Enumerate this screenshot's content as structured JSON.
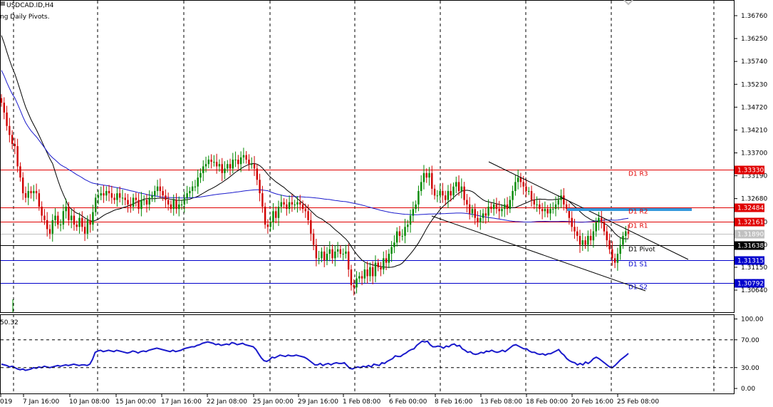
{
  "header": {
    "symbol": "USDCAD.ID,H4",
    "indicator": "ng Daily Pivots."
  },
  "chart_data": {
    "type": "candlestick",
    "symbol": "USDCAD.ID",
    "timeframe": "H4",
    "y_axis_labels": [
      "1.36760",
      "1.36250",
      "1.35740",
      "1.35230",
      "1.34720",
      "1.34210",
      "1.33700",
      "1.33190",
      "1.32680",
      "1.32160",
      "1.31650",
      "1.31150",
      "1.30640"
    ],
    "y_axis_values": [
      1.3676,
      1.3625,
      1.3574,
      1.3523,
      1.3472,
      1.3421,
      1.337,
      1.3319,
      1.3268,
      1.3216,
      1.3165,
      1.3115,
      1.3064
    ],
    "x_axis_labels": [
      "019",
      "7 Jan 16:00",
      "10 Jan 08:00",
      "15 Jan 00:00",
      "17 Jan 16:00",
      "22 Jan 08:00",
      "25 Jan 00:00",
      "29 Jan 16:00",
      "1 Feb 08:00",
      "6 Feb 00:00",
      "8 Feb 16:00",
      "13 Feb 08:00",
      "18 Feb 00:00",
      "20 Feb 16:00",
      "25 Feb 08:00"
    ],
    "pivot_levels": [
      {
        "name": "D1 R3",
        "value": 1.3333,
        "label": "1.33330",
        "color": "#e00000"
      },
      {
        "name": "D1 R2",
        "value": 1.32484,
        "label": "1.32484",
        "color": "#e00000"
      },
      {
        "name": "D1 R1",
        "value": 1.32161,
        "label": "1.32161",
        "color": "#e00000"
      },
      {
        "name": "D1 Pivot",
        "value": 1.31638,
        "label": "1.31638",
        "color": "#000000"
      },
      {
        "name": "D1 S1",
        "value": 1.31315,
        "label": "1.31315",
        "color": "#0000cc"
      },
      {
        "name": "D1 S2",
        "value": 1.30792,
        "label": "1.30792",
        "color": "#0000cc"
      }
    ],
    "current_price": {
      "value": 1.3189,
      "label": "1.31890"
    },
    "close_series": [
      1.3482,
      1.346,
      1.343,
      1.341,
      1.339,
      1.3385,
      1.334,
      1.3315,
      1.328,
      1.327,
      1.3285,
      1.328,
      1.3285,
      1.328,
      1.325,
      1.323,
      1.322,
      1.32,
      1.319,
      1.322,
      1.323,
      1.321,
      1.321,
      1.324,
      1.325,
      1.322,
      1.323,
      1.321,
      1.3205,
      1.3225,
      1.3205,
      1.319,
      1.322,
      1.321,
      1.3238,
      1.327,
      1.3275,
      1.328,
      1.3275,
      1.3285,
      1.328,
      1.327,
      1.3265,
      1.328,
      1.327,
      1.327,
      1.3265,
      1.3255,
      1.325,
      1.327,
      1.3265,
      1.3245,
      1.3265,
      1.3265,
      1.3255,
      1.327,
      1.3275,
      1.3285,
      1.3295,
      1.3285,
      1.3275,
      1.3265,
      1.3255,
      1.3245,
      1.3265,
      1.3245,
      1.3255,
      1.3255,
      1.327,
      1.328,
      1.3285,
      1.3295,
      1.3295,
      1.3315,
      1.3325,
      1.334,
      1.3345,
      1.3355,
      1.335,
      1.335,
      1.334,
      1.3345,
      1.3325,
      1.3335,
      1.3345,
      1.3335,
      1.3355,
      1.3355,
      1.3345,
      1.336,
      1.3365,
      1.3355,
      1.3345,
      1.3345,
      1.3335,
      1.331,
      1.328,
      1.325,
      1.321,
      1.3205,
      1.3215,
      1.324,
      1.3225,
      1.325,
      1.326,
      1.3255,
      1.3245,
      1.326,
      1.3255,
      1.3255,
      1.326,
      1.3255,
      1.3245,
      1.324,
      1.322,
      1.319,
      1.3165,
      1.3135,
      1.3135,
      1.315,
      1.313,
      1.3145,
      1.3155,
      1.3135,
      1.315,
      1.3155,
      1.3145,
      1.3145,
      1.315,
      1.311,
      1.3075,
      1.307,
      1.309,
      1.3095,
      1.309,
      1.311,
      1.3095,
      1.3115,
      1.3095,
      1.3125,
      1.3115,
      1.311,
      1.3135,
      1.3125,
      1.3145,
      1.316,
      1.317,
      1.3195,
      1.3185,
      1.3185,
      1.3205,
      1.321,
      1.323,
      1.3245,
      1.3255,
      1.3285,
      1.3305,
      1.3325,
      1.3315,
      1.3325,
      1.329,
      1.3275,
      1.3275,
      1.3285,
      1.3275,
      1.3265,
      1.3285,
      1.3275,
      1.3295,
      1.3305,
      1.3285,
      1.3295,
      1.3265,
      1.3255,
      1.3235,
      1.3245,
      1.3225,
      1.3215,
      1.3225,
      1.3235,
      1.323,
      1.325,
      1.3245,
      1.3255,
      1.3245,
      1.324,
      1.3245,
      1.3255,
      1.3245,
      1.3265,
      1.3285,
      1.3305,
      1.3315,
      1.3305,
      1.3295,
      1.3285,
      1.3285,
      1.3265,
      1.3255,
      1.3255,
      1.3245,
      1.324,
      1.3245,
      1.3235,
      1.3245,
      1.3245,
      1.3255,
      1.3265,
      1.3275,
      1.3255,
      1.3245,
      1.3225,
      1.3205,
      1.3195,
      1.3185,
      1.3165,
      1.3175,
      1.3165,
      1.3185,
      1.3175,
      1.3195,
      1.3215,
      1.3225,
      1.3215,
      1.3195,
      1.3175,
      1.3155,
      1.3135,
      1.3125,
      1.3145,
      1.3165,
      1.3185,
      1.3195,
      1.319
    ],
    "indicator": {
      "name": "RSI",
      "value_label": "50.32",
      "y_axis_labels": [
        "100.00",
        "70.00",
        "30.00",
        "0.00"
      ],
      "y_axis_values": [
        100,
        70,
        30,
        0
      ],
      "values": [
        35,
        34,
        33,
        31,
        32,
        30,
        28,
        27,
        28,
        26,
        27,
        28,
        30,
        29,
        31,
        30,
        32,
        31,
        30,
        31,
        32,
        33,
        32,
        33,
        34,
        33,
        34,
        35,
        34,
        33,
        34,
        34,
        33,
        35,
        42,
        52,
        54,
        55,
        53,
        54,
        55,
        54,
        53,
        55,
        54,
        53,
        52,
        51,
        52,
        54,
        53,
        51,
        53,
        54,
        53,
        55,
        56,
        57,
        58,
        57,
        56,
        55,
        54,
        53,
        55,
        53,
        54,
        55,
        57,
        58,
        59,
        60,
        60,
        62,
        63,
        65,
        66,
        67,
        66,
        65,
        63,
        64,
        62,
        63,
        64,
        63,
        66,
        65,
        63,
        64,
        65,
        63,
        62,
        61,
        60,
        56,
        50,
        44,
        40,
        39,
        41,
        45,
        44,
        46,
        48,
        47,
        46,
        48,
        47,
        47,
        48,
        47,
        46,
        45,
        43,
        40,
        37,
        34,
        34,
        36,
        33,
        35,
        36,
        34,
        36,
        37,
        36,
        36,
        37,
        33,
        29,
        28,
        30,
        31,
        30,
        32,
        31,
        33,
        31,
        35,
        34,
        33,
        37,
        36,
        39,
        41,
        43,
        47,
        46,
        46,
        49,
        51,
        54,
        56,
        57,
        62,
        65,
        68,
        67,
        68,
        63,
        60,
        60,
        61,
        60,
        58,
        61,
        60,
        63,
        64,
        61,
        62,
        57,
        55,
        52,
        53,
        50,
        49,
        50,
        52,
        51,
        54,
        53,
        55,
        53,
        52,
        53,
        55,
        53,
        56,
        59,
        62,
        63,
        61,
        59,
        57,
        57,
        54,
        52,
        52,
        50,
        49,
        50,
        48,
        50,
        50,
        52,
        54,
        56,
        51,
        48,
        43,
        40,
        38,
        37,
        34,
        36,
        34,
        38,
        36,
        39,
        43,
        45,
        43,
        40,
        37,
        34,
        31,
        30,
        33,
        37,
        41,
        44,
        47,
        50.32
      ]
    }
  }
}
